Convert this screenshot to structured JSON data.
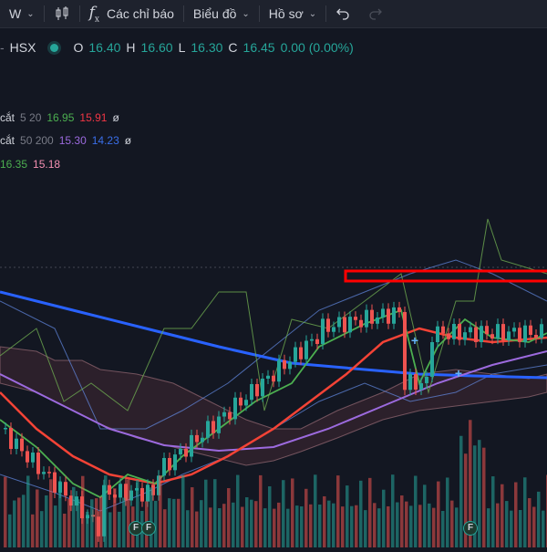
{
  "toolbar": {
    "interval": "W",
    "indicators_label": "Các chỉ báo",
    "chart_label": "Biểu đồ",
    "profile_label": "Hồ sơ"
  },
  "symbol": {
    "exchange": "HSX",
    "open_label": "O",
    "open": "16.40",
    "high_label": "H",
    "high": "16.60",
    "low_label": "L",
    "low": "16.30",
    "close_label": "C",
    "close": "16.45",
    "change": "0.00 (0.00%)"
  },
  "indicators": [
    {
      "name": "cắt",
      "params": "5 20",
      "v1": "16.95",
      "v2": "15.91",
      "eye": "ø"
    },
    {
      "name": "cắt",
      "params": "50 200",
      "v1": "15.30",
      "v2": "14.23",
      "eye": "ø"
    },
    {
      "v1": "16.35",
      "v2": "15.18"
    }
  ],
  "markers": [
    "F",
    "F",
    "F"
  ],
  "colors": {
    "up": "#26a69a",
    "down": "#ef5350",
    "ma_fast": "#4caf50",
    "ma_slow": "#f44336",
    "ma_purple": "#9c6ade",
    "ma_blue": "#2962ff",
    "highlight": "#ff0000"
  },
  "icons": [
    "candlestick-icon",
    "function-icon",
    "undo-icon",
    "redo-icon",
    "eye-off-icon"
  ]
}
